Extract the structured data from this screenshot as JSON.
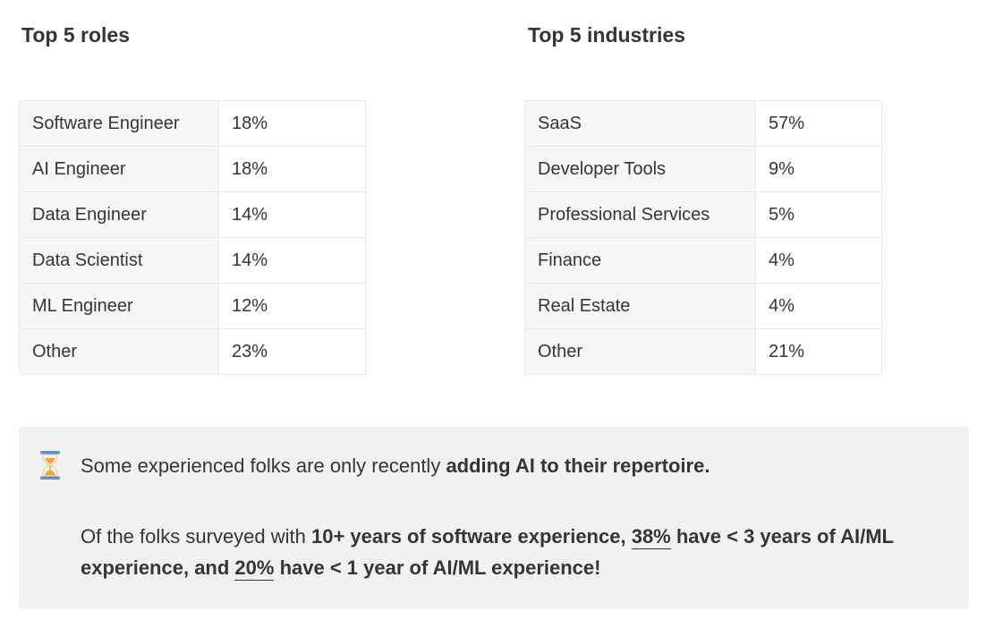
{
  "roles": {
    "title": "Top 5 roles",
    "rows": [
      {
        "label": "Software Engineer",
        "value": "18%"
      },
      {
        "label": "AI Engineer",
        "value": "18%"
      },
      {
        "label": "Data Engineer",
        "value": "14%"
      },
      {
        "label": "Data Scientist",
        "value": "14%"
      },
      {
        "label": "ML Engineer",
        "value": "12%"
      },
      {
        "label": "Other",
        "value": "23%"
      }
    ]
  },
  "industries": {
    "title": "Top 5 industries",
    "rows": [
      {
        "label": "SaaS",
        "value": "57%"
      },
      {
        "label": "Developer Tools",
        "value": "9%"
      },
      {
        "label": "Professional Services",
        "value": "5%"
      },
      {
        "label": "Finance",
        "value": "4%"
      },
      {
        "label": "Real Estate",
        "value": "4%"
      },
      {
        "label": "Other",
        "value": "21%"
      }
    ]
  },
  "callout": {
    "icon": "hourglass-icon",
    "line1": {
      "prefix": "Some experienced folks are only recently ",
      "bold": "adding AI to their repertoire."
    },
    "line2": {
      "t1": "Of the folks surveyed with ",
      "b1": "10+ years of software experience, ",
      "u1": "38%",
      "b2": " have < 3 years of AI/ML experience, and ",
      "u2": "20%",
      "b3": " have < 1 year of AI/ML experience!"
    }
  },
  "colors": {
    "text": "#37352f",
    "label_cell_bg": "#f7f6f3",
    "border": "#e9e9e7",
    "callout_bg": "#f1f1ef",
    "hourglass_frame": "#5b8fd6",
    "hourglass_sand": "#f2a33a"
  }
}
